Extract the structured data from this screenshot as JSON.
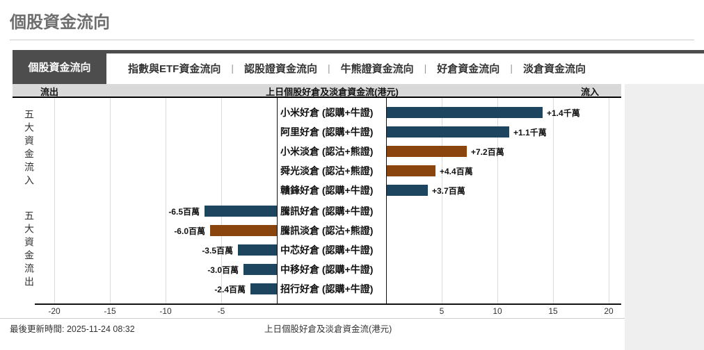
{
  "page": {
    "title": "個股資金流向",
    "last_update": "最後更新時間: 2025-11-24 08:32",
    "footer_caption": "上日個股好倉及淡倉資金流(港元)"
  },
  "tabs": {
    "active": "個股資金流向",
    "items": [
      "指數與ETF資金流向",
      "認股證資金流向",
      "牛熊證資金流向",
      "好倉資金流向",
      "淡倉資金流向"
    ],
    "separator": "|"
  },
  "chart_header": {
    "left": "流出",
    "center": "上日個股好倉及淡倉資金流(港元)",
    "right": "流入"
  },
  "groups": {
    "inflow": "五大資金流入",
    "outflow": "五大資金流出"
  },
  "colors": {
    "call_bar": "#1d455f",
    "put_bar": "#8a450f",
    "tab_bar": "#4d4d4d",
    "header_bg": "#d9d9d9",
    "grid": "#d9d9d9"
  },
  "chart_data": {
    "type": "bar",
    "orientation": "horizontal",
    "title": "上日個股好倉及淡倉資金流(港元)",
    "unit": "百萬港元",
    "x_ticks_left": [
      -20,
      -15,
      -10,
      -5
    ],
    "x_ticks_right": [
      5,
      10,
      15,
      20
    ],
    "xlim": [
      -21.5,
      21.5
    ],
    "grid": true,
    "inflow_rows": [
      {
        "label": "小米好倉 (認購+牛證)",
        "value": 14,
        "value_label": "+1.4千萬",
        "kind": "call"
      },
      {
        "label": "阿里好倉 (認購+牛證)",
        "value": 11,
        "value_label": "+1.1千萬",
        "kind": "call"
      },
      {
        "label": "小米淡倉 (認沽+熊證)",
        "value": 7.2,
        "value_label": "+7.2百萬",
        "kind": "put"
      },
      {
        "label": "舜光淡倉 (認沽+熊證)",
        "value": 4.4,
        "value_label": "+4.4百萬",
        "kind": "put"
      },
      {
        "label": "贛鋒好倉 (認購+牛證)",
        "value": 3.7,
        "value_label": "+3.7百萬",
        "kind": "call"
      }
    ],
    "outflow_rows": [
      {
        "label": "騰訊好倉 (認購+牛證)",
        "value": -6.5,
        "value_label": "-6.5百萬",
        "kind": "call"
      },
      {
        "label": "騰訊淡倉 (認沽+熊證)",
        "value": -6.0,
        "value_label": "-6.0百萬",
        "kind": "put"
      },
      {
        "label": "中芯好倉 (認購+牛證)",
        "value": -3.5,
        "value_label": "-3.5百萬",
        "kind": "call"
      },
      {
        "label": "中移好倉 (認購+牛證)",
        "value": -3.0,
        "value_label": "-3.0百萬",
        "kind": "call"
      },
      {
        "label": "招行好倉 (認購+牛證)",
        "value": -2.4,
        "value_label": "-2.4百萬",
        "kind": "call"
      }
    ]
  }
}
